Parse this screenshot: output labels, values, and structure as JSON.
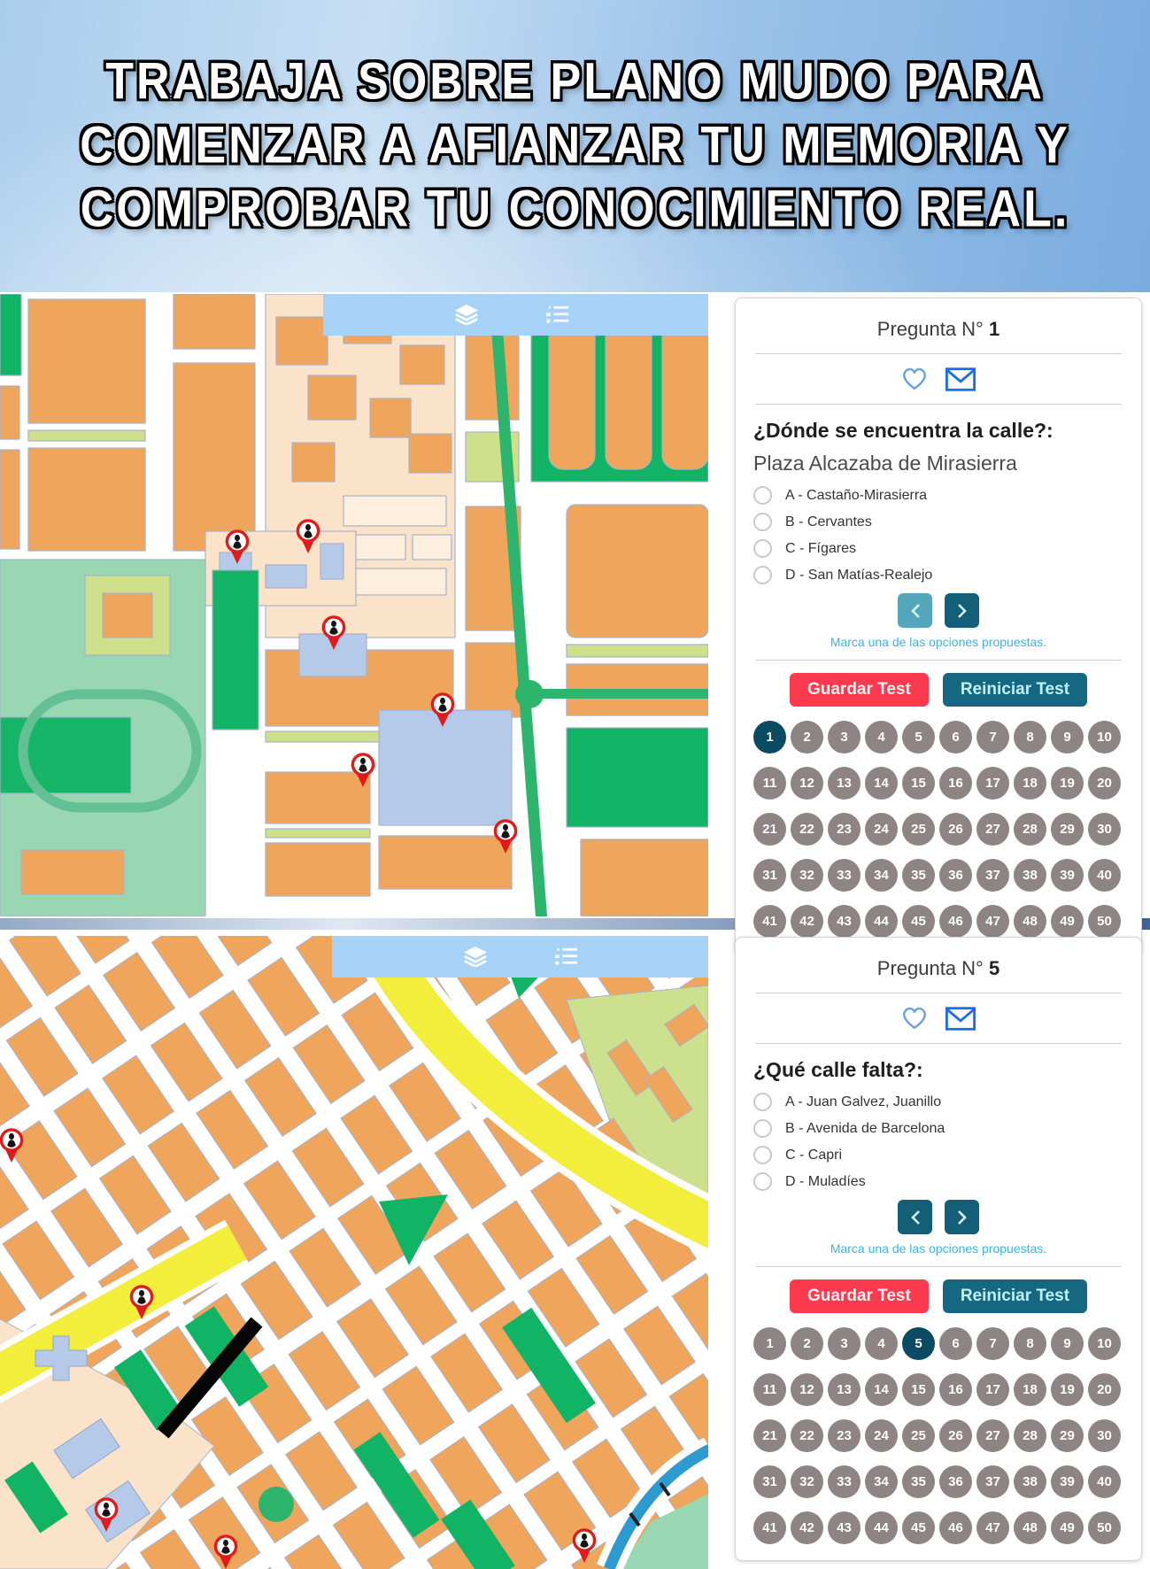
{
  "header": {
    "lines": [
      "TRABAJA SOBRE PLANO MUDO PARA",
      "COMENZAR A AFIANZAR TU MEMORIA Y",
      "COMPROBAR TU CONOCIMIENTO REAL."
    ]
  },
  "map_toolbar": {
    "icons": [
      "layers-icon",
      "list-icon"
    ]
  },
  "panels": [
    {
      "title_label": "Pregunta N°",
      "title_number": "1",
      "prompt": "¿Dónde se encuentra la calle?:",
      "subject": "Plaza Alcazaba de Mirasierra",
      "options": [
        "A - Castaño-Mirasierra",
        "B - Cervantes",
        "C - Fígares",
        "D - San Matías-Realejo"
      ],
      "hint": "Marca una de las opciones propuestas.",
      "save_label": "Guardar Test",
      "reset_label": "Reiniciar Test",
      "selected_number": 1
    },
    {
      "title_label": "Pregunta N°",
      "title_number": "5",
      "prompt": "¿Qué calle falta?:",
      "options": [
        "A - Juan Galvez, Juanillo",
        "B - Avenida de Barcelona",
        "C - Capri",
        "D - Muladíes"
      ],
      "hint": "Marca una de las opciones propuestas.",
      "save_label": "Guardar Test",
      "reset_label": "Reiniciar Test",
      "selected_number": 5
    }
  ],
  "pager": {
    "numbers": [
      1,
      2,
      3,
      4,
      5,
      6,
      7,
      8,
      9,
      10,
      11,
      12,
      13,
      14,
      15,
      16,
      17,
      18,
      19,
      20,
      21,
      22,
      23,
      24,
      25,
      26,
      27,
      28,
      29,
      30,
      31,
      32,
      33,
      34,
      35,
      36,
      37,
      38,
      39,
      40,
      41,
      42,
      43,
      44,
      45,
      46,
      47,
      48,
      49,
      50
    ]
  },
  "colors": {
    "save_button": "#fb3a50",
    "reset_button": "#15687f",
    "number_default": "#8d8483",
    "number_selected": "#0b4a63",
    "hint_text": "#3cb4de",
    "heart_icon": "#6aa2de",
    "envelope_icon": "#1a6fe8",
    "toolbar": "#a5d2f6",
    "map_building": "#f0a55c",
    "map_park": "#10b464",
    "map_highlight_street": "#000000"
  }
}
